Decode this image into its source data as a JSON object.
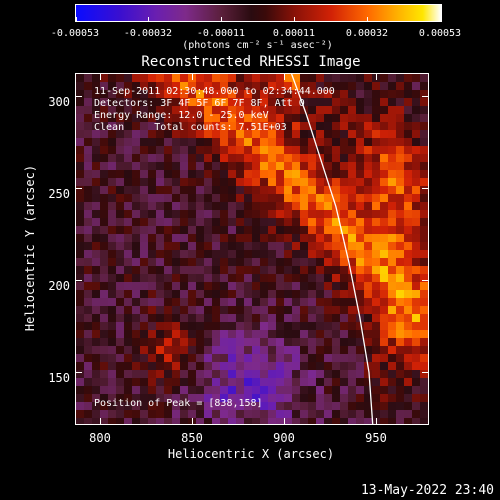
{
  "colorbar": {
    "tick_labels": [
      "-0.00053",
      "-0.00032",
      "-0.00011",
      "0.00011",
      "0.00032",
      "0.00053"
    ],
    "units": "(photons cm⁻² s⁻¹ asec⁻²)"
  },
  "title": "Reconstructed RHESSI Image",
  "info": {
    "line1": "11-Sep-2011 02:30:48.000 to 02:34:44.000",
    "line2": "Detectors: 3F 4F 5F 6F 7F 8F, Att 0",
    "line3": "Energy Range: 12.0 - 25.0 keV",
    "line4": "Clean     Total counts: 7.51E+03"
  },
  "peak_label": "Position of Peak = [838,158]",
  "footer_date": "13-May-2022 23:40",
  "chart_data": {
    "type": "heatmap",
    "title": "Reconstructed RHESSI Image",
    "xlabel": "Heliocentric X (arcsec)",
    "ylabel": "Heliocentric Y (arcsec)",
    "xlim": [
      787,
      978
    ],
    "ylim": [
      122,
      312
    ],
    "x_ticks": [
      800,
      850,
      900,
      950
    ],
    "y_ticks": [
      150,
      200,
      250,
      300
    ],
    "x_tick_labels": [
      "800",
      "850",
      "900",
      "950"
    ],
    "y_tick_labels": [
      "150",
      "200",
      "250",
      "300"
    ],
    "value_range": [
      -0.00053,
      0.00053
    ],
    "peak": [
      838,
      158
    ],
    "limb_curve": [
      [
        904,
        312
      ],
      [
        912,
        290
      ],
      [
        920,
        265
      ],
      [
        928,
        240
      ],
      [
        935,
        210
      ],
      [
        941,
        180
      ],
      [
        946,
        150
      ],
      [
        948,
        122
      ]
    ]
  }
}
